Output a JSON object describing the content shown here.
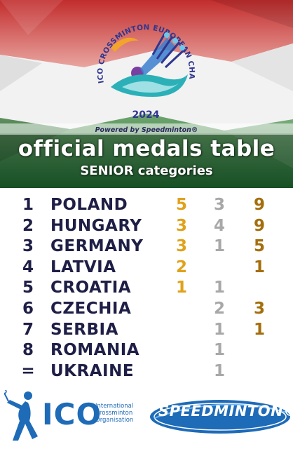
{
  "header": {
    "event_ring_text": "ICO CROSSMINTON EUROPEAN CHAMPIONSHIPS",
    "year": "2024",
    "powered_by": "Powered by Speedminton®",
    "title": "official medals table",
    "subtitle": "SENIOR categories",
    "flag_colors": [
      "#ffffff",
      "#d32f2f",
      "#2e7d32"
    ]
  },
  "medals": {
    "colors": {
      "gold": "#e0a21a",
      "silver": "#a8a8a8",
      "bronze": "#a46e0c"
    },
    "rows": [
      {
        "rank": "1",
        "country": "POLAND",
        "gold": "5",
        "silver": "3",
        "bronze": "9"
      },
      {
        "rank": "2",
        "country": "HUNGARY",
        "gold": "3",
        "silver": "4",
        "bronze": "9"
      },
      {
        "rank": "3",
        "country": "GERMANY",
        "gold": "3",
        "silver": "1",
        "bronze": "5"
      },
      {
        "rank": "4",
        "country": "LATVIA",
        "gold": "2",
        "silver": "",
        "bronze": "1"
      },
      {
        "rank": "5",
        "country": "CROATIA",
        "gold": "1",
        "silver": "1",
        "bronze": ""
      },
      {
        "rank": "6",
        "country": "CZECHIA",
        "gold": "",
        "silver": "2",
        "bronze": "3"
      },
      {
        "rank": "7",
        "country": "SERBIA",
        "gold": "",
        "silver": "1",
        "bronze": "1"
      },
      {
        "rank": "8",
        "country": "ROMANIA",
        "gold": "",
        "silver": "1",
        "bronze": ""
      },
      {
        "rank": "=",
        "country": "UKRAINE",
        "gold": "",
        "silver": "1",
        "bronze": ""
      }
    ]
  },
  "footer": {
    "ico_logo_text": "ICO",
    "ico_name_lines": [
      "International",
      "Crossminton",
      "Organisation"
    ],
    "speedminton_logo_text": "SPEEDMINTON®"
  }
}
